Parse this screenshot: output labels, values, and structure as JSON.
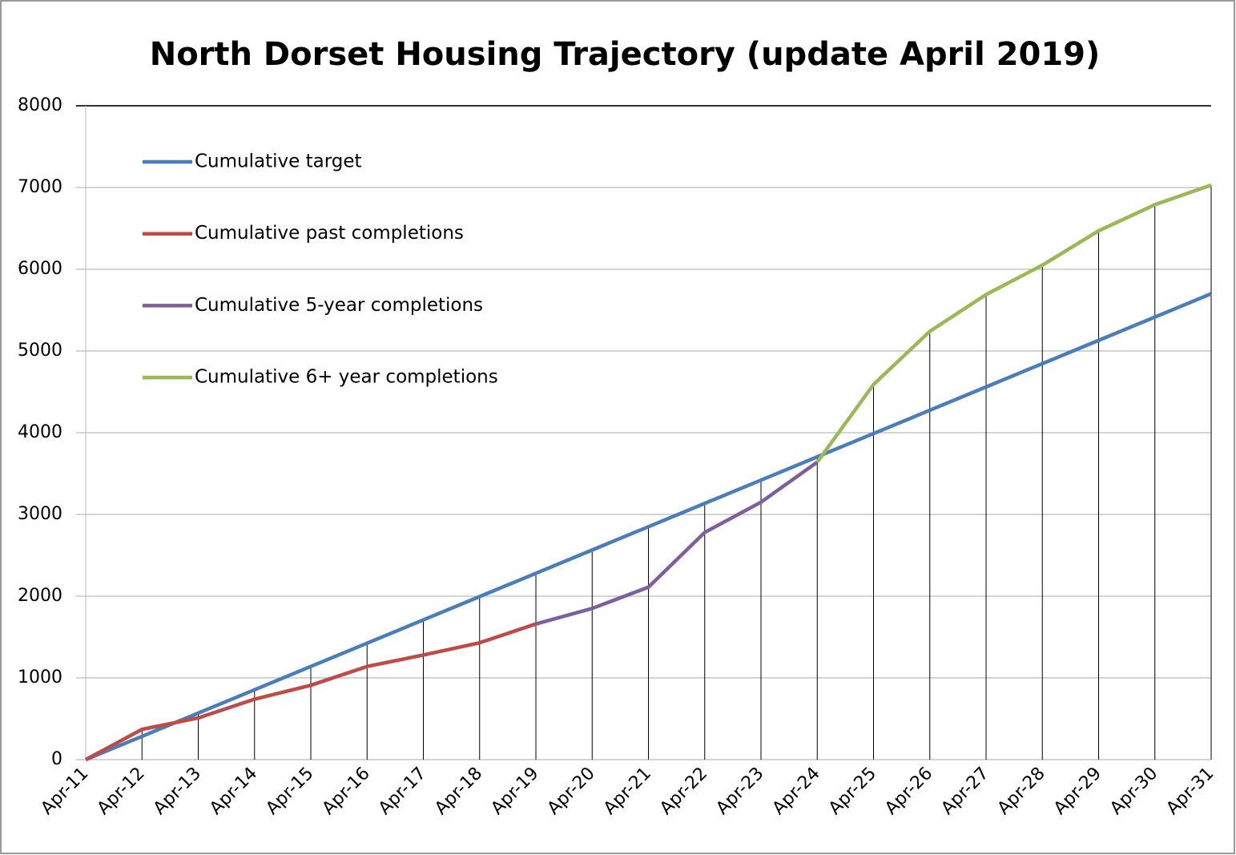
{
  "chart_data": {
    "type": "line",
    "title": "North Dorset Housing Trajectory (update April 2019)",
    "categories": [
      "Apr-11",
      "Apr-12",
      "Apr-13",
      "Apr-14",
      "Apr-15",
      "Apr-16",
      "Apr-17",
      "Apr-18",
      "Apr-19",
      "Apr-20",
      "Apr-21",
      "Apr-22",
      "Apr-23",
      "Apr-24",
      "Apr-25",
      "Apr-26",
      "Apr-27",
      "Apr-28",
      "Apr-29",
      "Apr-30",
      "Apr-31"
    ],
    "series": [
      {
        "name": "Cumulative target",
        "color": "#4a7ebb",
        "values": [
          0,
          285,
          570,
          855,
          1140,
          1425,
          1710,
          1995,
          2280,
          2565,
          2850,
          3135,
          3420,
          3705,
          3990,
          4275,
          4560,
          4845,
          5130,
          5415,
          5700
        ]
      },
      {
        "name": "Cumulative past completions",
        "color": "#be4b48",
        "values": [
          0,
          370,
          510,
          740,
          910,
          1140,
          1280,
          1430,
          1660,
          null,
          null,
          null,
          null,
          null,
          null,
          null,
          null,
          null,
          null,
          null,
          null
        ]
      },
      {
        "name": "Cumulative 5-year completions",
        "color": "#7d5fa0",
        "values": [
          null,
          null,
          null,
          null,
          null,
          null,
          null,
          null,
          1660,
          1850,
          2110,
          2780,
          3150,
          3640,
          null,
          null,
          null,
          null,
          null,
          null,
          null
        ]
      },
      {
        "name": "Cumulative 6+ year completions",
        "color": "#98b954",
        "values": [
          null,
          null,
          null,
          null,
          null,
          null,
          null,
          null,
          null,
          null,
          null,
          null,
          null,
          3640,
          4590,
          5240,
          5690,
          6050,
          6470,
          6790,
          7030
        ]
      }
    ],
    "ylim": [
      0,
      8000
    ],
    "yticks": [
      0,
      1000,
      2000,
      3000,
      4000,
      5000,
      6000,
      7000,
      8000
    ],
    "grid": true,
    "drop_lines": true,
    "legend": "upper left"
  }
}
